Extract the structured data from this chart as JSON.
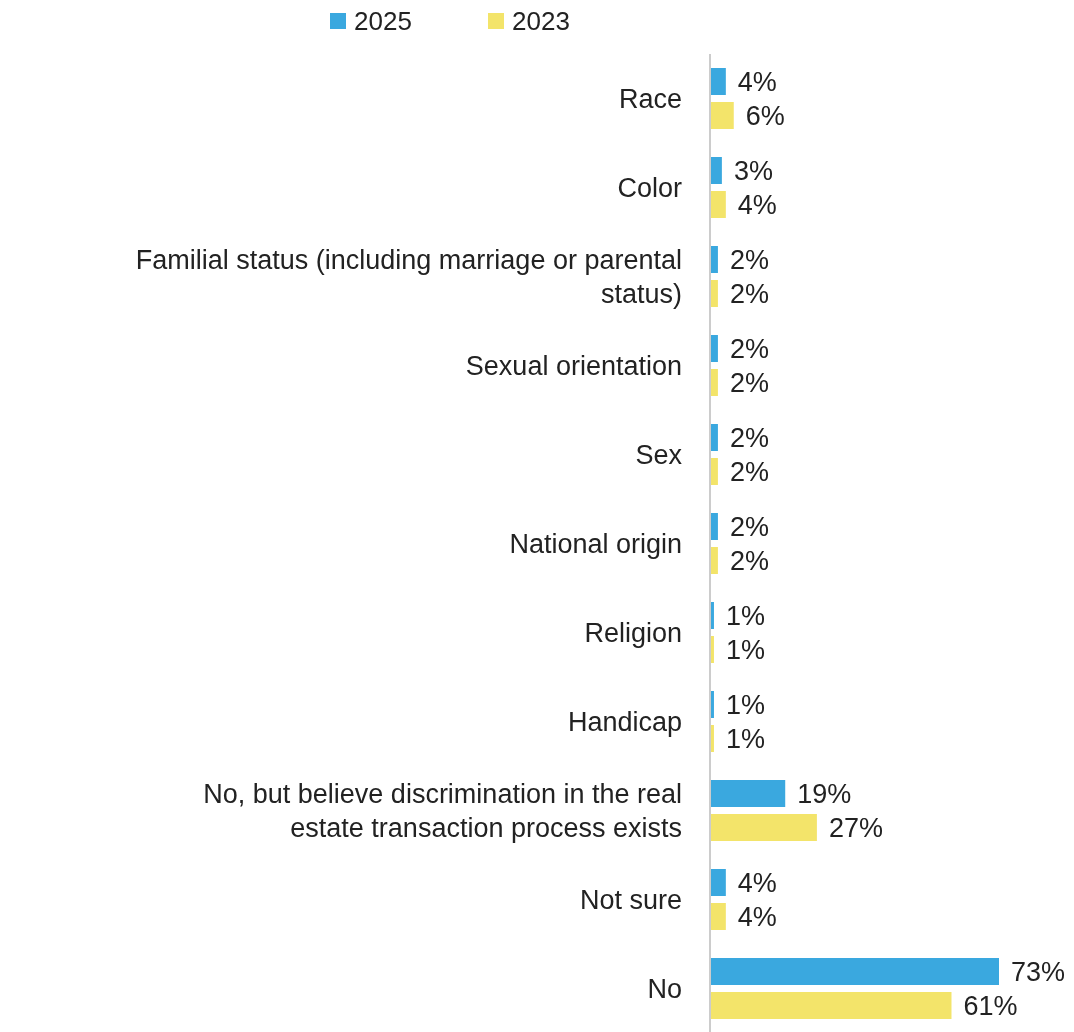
{
  "chart_data": {
    "type": "bar",
    "orientation": "horizontal",
    "categories": [
      "Race",
      "Color",
      "Familial status (including marriage or parental status)",
      "Sexual orientation",
      "Sex",
      "National origin",
      "Religion",
      "Handicap",
      "No, but believe discrimination in the real estate transaction process exists",
      "Not sure",
      "No"
    ],
    "series": [
      {
        "name": "2025",
        "color": "#3aa8df",
        "values": [
          4,
          3,
          2,
          2,
          2,
          2,
          1,
          1,
          19,
          4,
          73
        ],
        "value_labels": [
          "4%",
          "3%",
          "2%",
          "2%",
          "2%",
          "2%",
          "1%",
          "1%",
          "19%",
          "4%",
          "73%"
        ]
      },
      {
        "name": "2023",
        "color": "#f3e46a",
        "values": [
          6,
          4,
          2,
          2,
          2,
          2,
          1,
          1,
          27,
          4,
          61
        ],
        "value_labels": [
          "6%",
          "4%",
          "2%",
          "2%",
          "2%",
          "2%",
          "1%",
          "1%",
          "27%",
          "4%",
          "61%"
        ]
      }
    ],
    "legend": "top"
  }
}
